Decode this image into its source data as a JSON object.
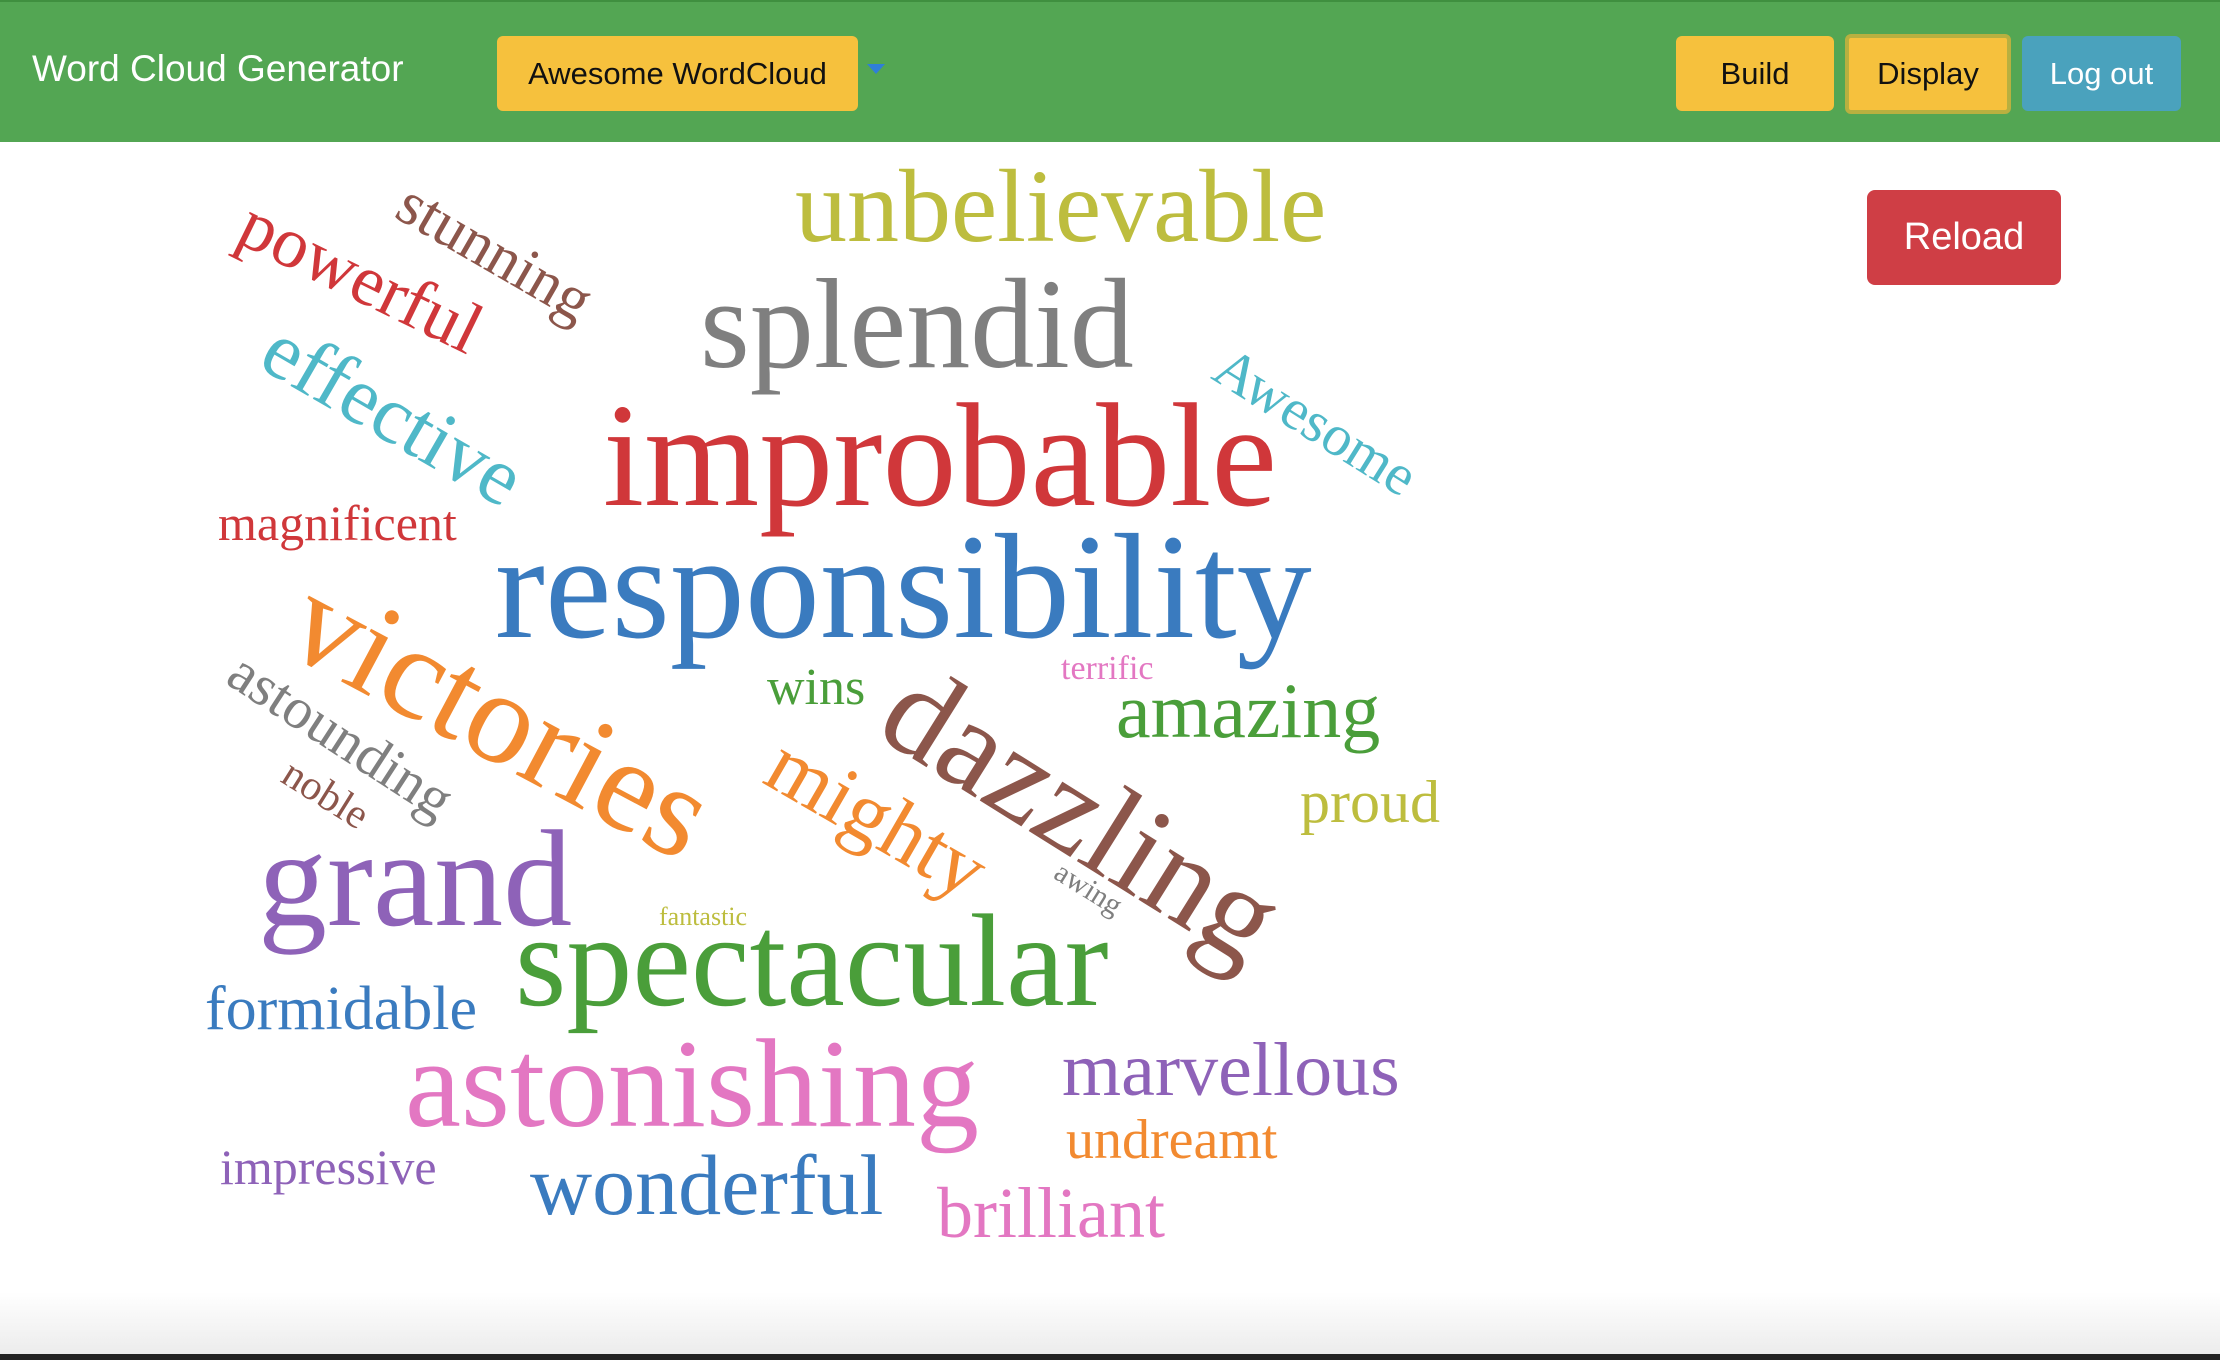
{
  "navbar": {
    "brand": "Word Cloud Generator",
    "dropdown_label": "Awesome WordCloud",
    "build_label": "Build",
    "display_label": "Display",
    "logout_label": "Log out"
  },
  "reload_label": "Reload",
  "colors": {
    "navbar": "#53a653",
    "yellow_button": "#f6c13d",
    "logout_button": "#4aa2bd",
    "reload_button": "#cf3e45"
  },
  "word_cloud": [
    {
      "text": "unbelievable",
      "color": "#bdbd3e"
    },
    {
      "text": "stunning",
      "color": "#8c564b"
    },
    {
      "text": "powerful",
      "color": "#d0373a"
    },
    {
      "text": "splendid",
      "color": "#7f7f7f"
    },
    {
      "text": "effective",
      "color": "#4fb8c8"
    },
    {
      "text": "Awesome",
      "color": "#4fb8c8"
    },
    {
      "text": "improbable",
      "color": "#d0373a"
    },
    {
      "text": "magnificent",
      "color": "#d0373a"
    },
    {
      "text": "responsibility",
      "color": "#3a7bbf"
    },
    {
      "text": "victories",
      "color": "#f28a30"
    },
    {
      "text": "terrific",
      "color": "#e377c2"
    },
    {
      "text": "wins",
      "color": "#4a9e3a"
    },
    {
      "text": "dazzling",
      "color": "#8c564b"
    },
    {
      "text": "amazing",
      "color": "#4a9e3a"
    },
    {
      "text": "astounding",
      "color": "#7f7f7f"
    },
    {
      "text": "mighty",
      "color": "#f28a30"
    },
    {
      "text": "noble",
      "color": "#8c564b"
    },
    {
      "text": "proud",
      "color": "#bdbd3e"
    },
    {
      "text": "grand",
      "color": "#8e62b8"
    },
    {
      "text": "awing",
      "color": "#7f7f7f"
    },
    {
      "text": "fantastic",
      "color": "#bdbd3e"
    },
    {
      "text": "spectacular",
      "color": "#4a9e3a"
    },
    {
      "text": "formidable",
      "color": "#3a7bbf"
    },
    {
      "text": "astonishing",
      "color": "#e377c2"
    },
    {
      "text": "marvellous",
      "color": "#8e62b8"
    },
    {
      "text": "undreamt",
      "color": "#f28a30"
    },
    {
      "text": "impressive",
      "color": "#8e62b8"
    },
    {
      "text": "wonderful",
      "color": "#3a7bbf"
    },
    {
      "text": "brilliant",
      "color": "#e377c2"
    }
  ]
}
